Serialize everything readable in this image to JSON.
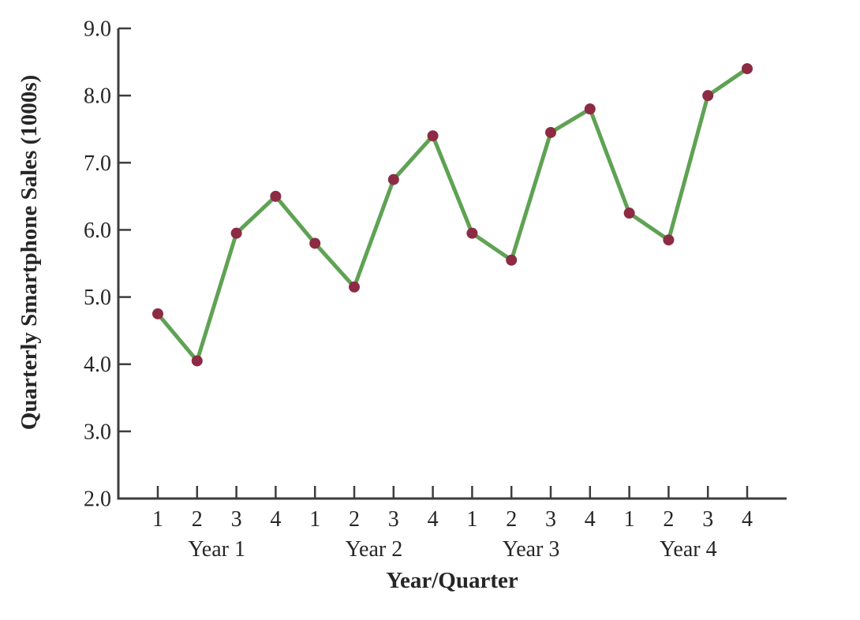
{
  "figure": {
    "background": "#ffffff"
  },
  "chart_data": {
    "type": "line",
    "title": "",
    "xlabel": "Year/Quarter",
    "ylabel": "Quarterly Smartphone Sales (1000s)",
    "ylim": [
      2.0,
      9.0
    ],
    "y_tick_step": 1.0,
    "y_tick_labels": [
      "2.0",
      "3.0",
      "4.0",
      "5.0",
      "6.0",
      "7.0",
      "8.0",
      "9.0"
    ],
    "x_quarter_labels": [
      "1",
      "2",
      "3",
      "4",
      "1",
      "2",
      "3",
      "4",
      "1",
      "2",
      "3",
      "4",
      "1",
      "2",
      "3",
      "4"
    ],
    "year_group_labels": [
      "Year 1",
      "Year 2",
      "Year 3",
      "Year 4"
    ],
    "grid": false,
    "legend": false,
    "series": [
      {
        "name": "Quarterly Smartphone Sales (1000s)",
        "x": [
          "Y1Q1",
          "Y1Q2",
          "Y1Q3",
          "Y1Q4",
          "Y2Q1",
          "Y2Q2",
          "Y2Q3",
          "Y2Q4",
          "Y3Q1",
          "Y3Q2",
          "Y3Q3",
          "Y3Q4",
          "Y4Q1",
          "Y4Q2",
          "Y4Q3",
          "Y4Q4"
        ],
        "values": [
          4.75,
          4.05,
          5.95,
          6.5,
          5.8,
          5.15,
          6.75,
          7.4,
          5.95,
          5.55,
          7.45,
          7.8,
          6.25,
          5.85,
          8.0,
          8.4
        ]
      }
    ],
    "colors": {
      "line": "#5fa254",
      "marker": "#8d2b44",
      "axis": "#3d3d3d",
      "text": "#262626"
    }
  }
}
